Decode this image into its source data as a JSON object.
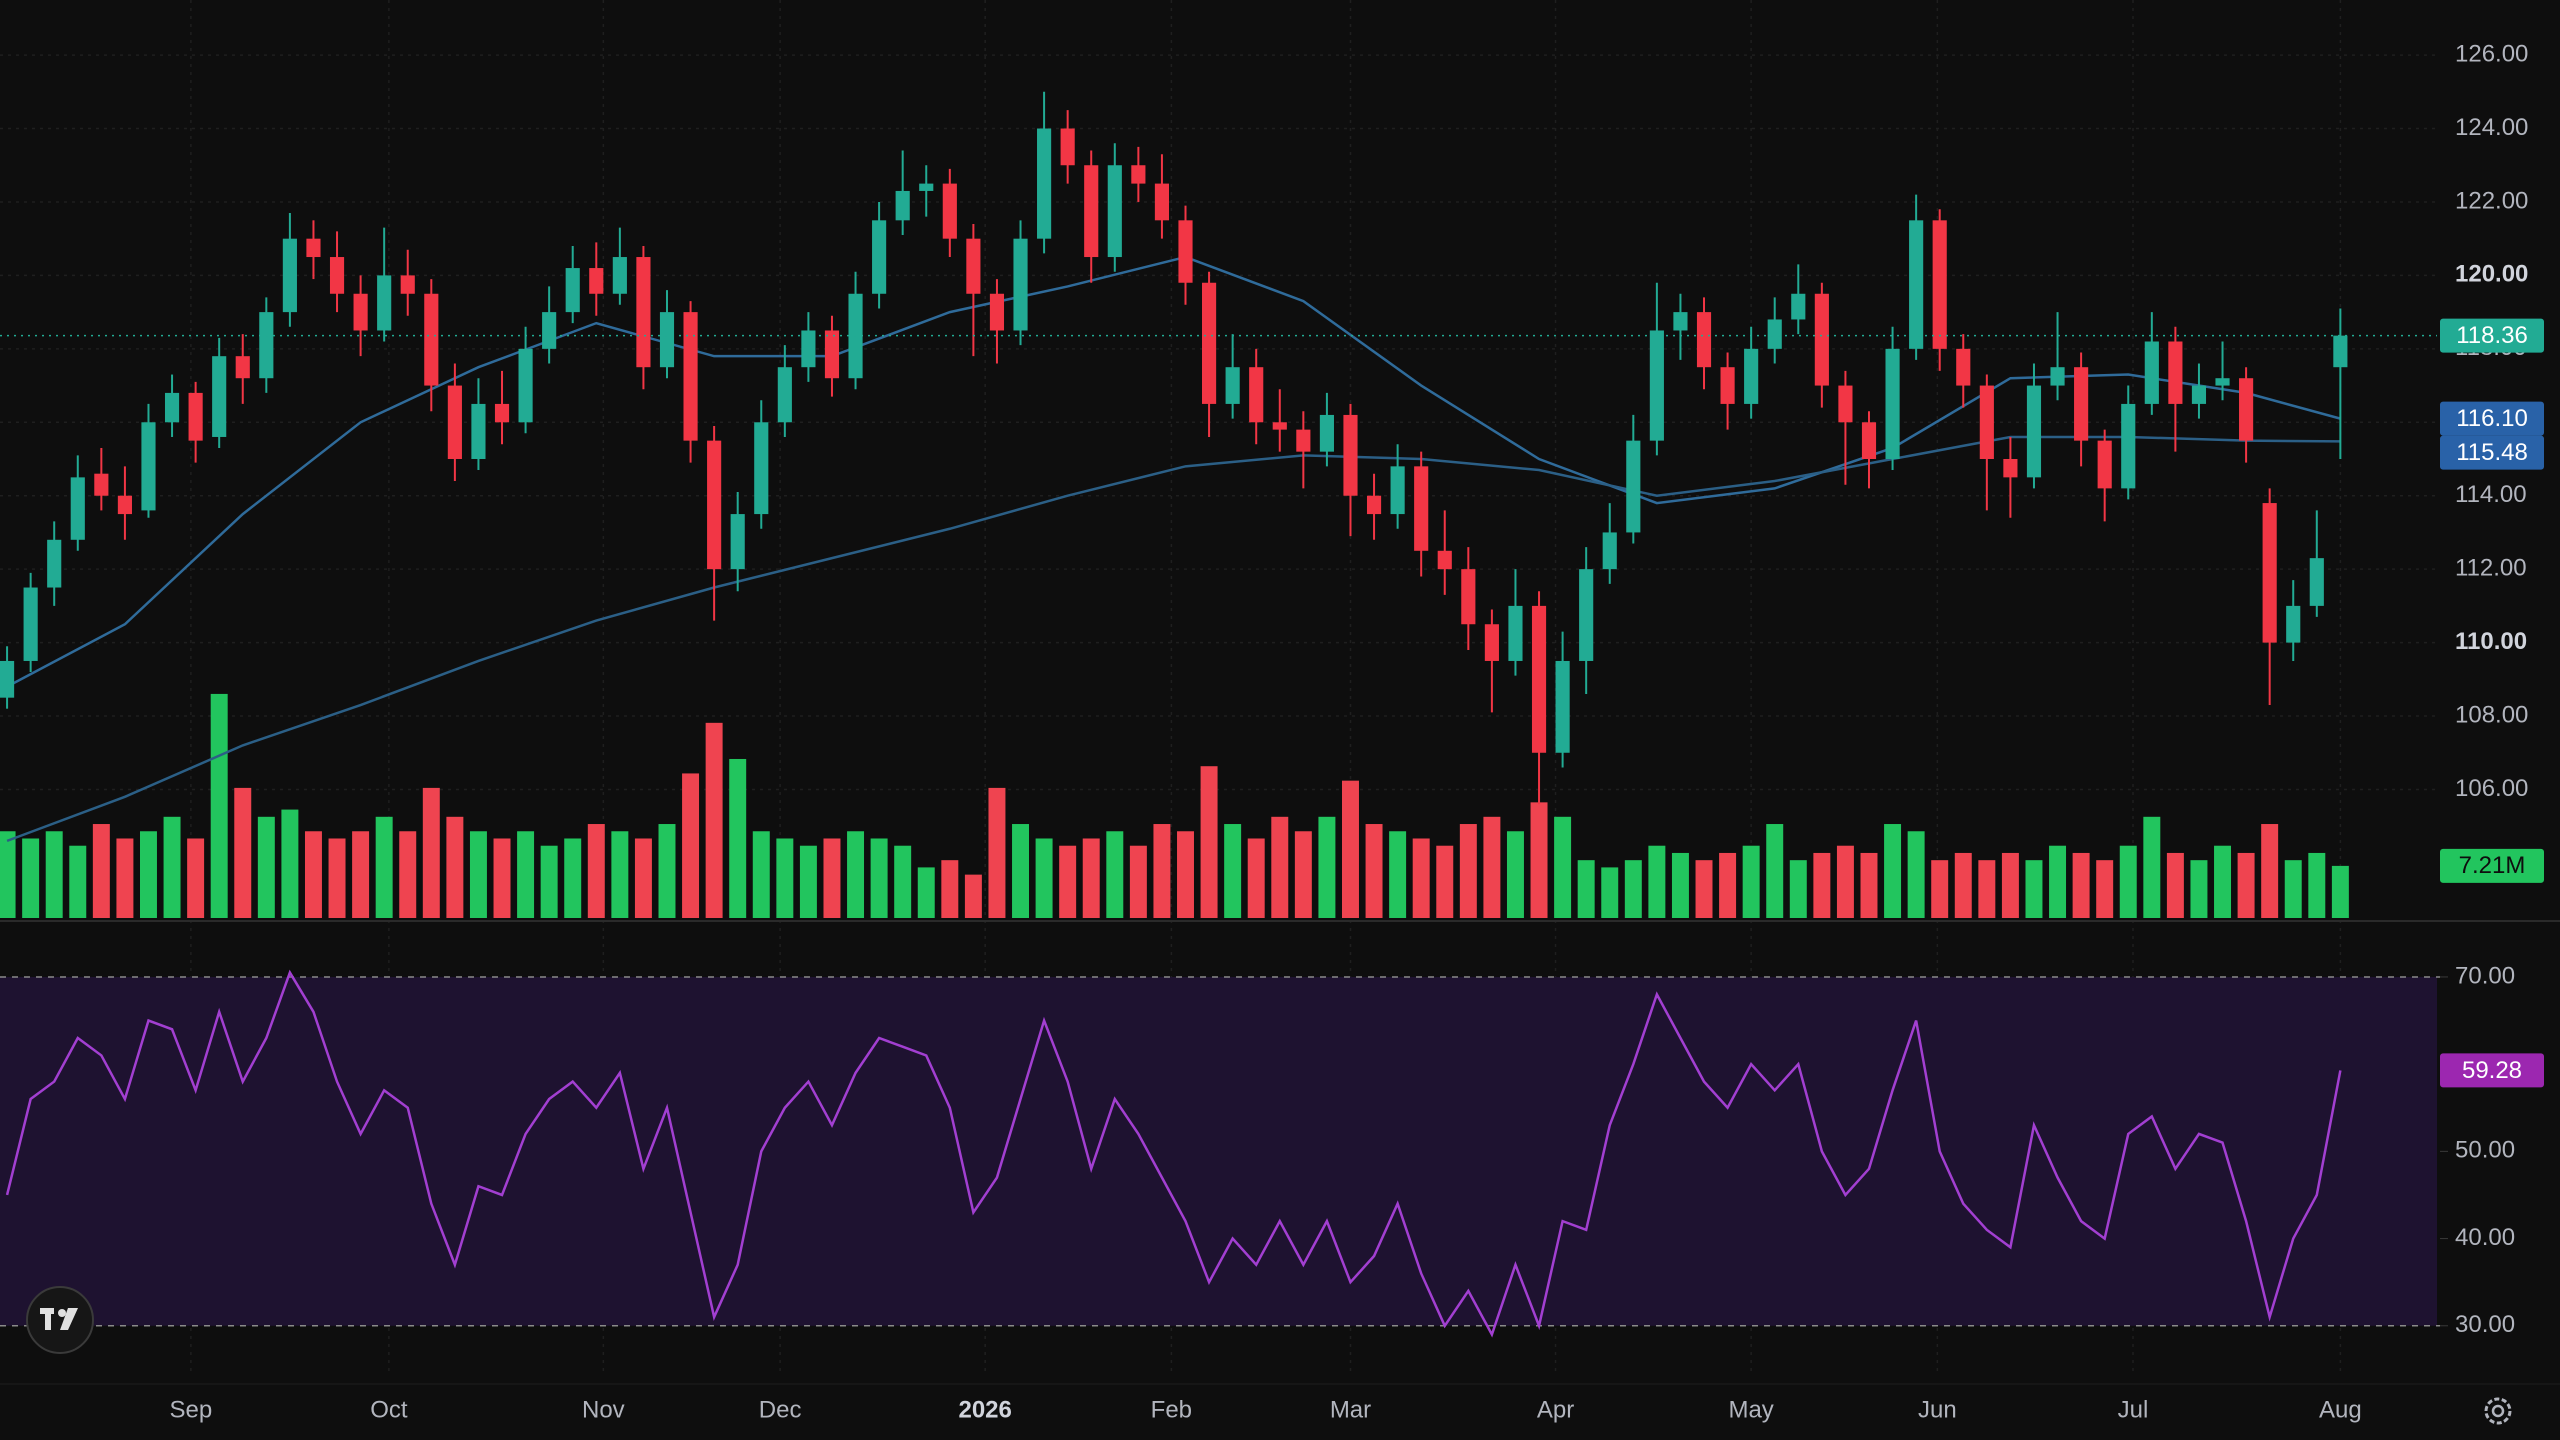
{
  "chart_data": {
    "type": "candlestick",
    "xlim": [
      -0.3,
      103.1
    ],
    "xticks": [
      {
        "value": 7.8,
        "label": "Sep"
      },
      {
        "value": 16.2,
        "label": "Oct"
      },
      {
        "value": 25.3,
        "label": "Nov"
      },
      {
        "value": 32.8,
        "label": "Dec"
      },
      {
        "value": 41.5,
        "label": "2026"
      },
      {
        "value": 49.4,
        "label": "Feb"
      },
      {
        "value": 57.0,
        "label": "Mar"
      },
      {
        "value": 65.7,
        "label": "Apr"
      },
      {
        "value": 74.0,
        "label": "May"
      },
      {
        "value": 81.9,
        "label": "Jun"
      },
      {
        "value": 90.2,
        "label": "Jul"
      },
      {
        "value": 99.0,
        "label": "Aug"
      }
    ],
    "ylim": [
      102.5,
      127.5
    ],
    "yticks": [
      {
        "value": 106,
        "label": "106.00"
      },
      {
        "value": 108,
        "label": "108.00"
      },
      {
        "value": 110,
        "label": "110.00"
      },
      {
        "value": 112,
        "label": "112.00"
      },
      {
        "value": 114,
        "label": "114.00"
      },
      {
        "value": 116,
        "label": "116.00"
      },
      {
        "value": 118,
        "label": "118.00"
      },
      {
        "value": 120,
        "label": "120.00"
      },
      {
        "value": 122,
        "label": "122.00"
      },
      {
        "value": 124,
        "label": "124.00"
      },
      {
        "value": 126,
        "label": "126.00"
      }
    ],
    "grid": true,
    "up_color": "#22ab94",
    "down_color": "#f23645",
    "open": [
      108.5,
      109.5,
      111.5,
      112.8,
      114.6,
      114.0,
      113.6,
      116.0,
      116.8,
      115.6,
      117.8,
      117.2,
      119.0,
      121.0,
      120.5,
      119.5,
      118.5,
      120.0,
      119.5,
      117.0,
      115.0,
      116.5,
      116.0,
      118.0,
      119.0,
      120.2,
      119.5,
      120.5,
      117.5,
      119.0,
      115.5,
      112.0,
      113.5,
      116.0,
      117.5,
      118.5,
      117.2,
      119.5,
      121.5,
      122.3,
      122.5,
      121.0,
      119.5,
      118.5,
      121.0,
      124.0,
      123.0,
      120.5,
      123.0,
      122.5,
      121.5,
      119.8,
      116.5,
      117.5,
      116.0,
      115.8,
      115.2,
      116.2,
      114.0,
      113.5,
      114.8,
      112.5,
      112.0,
      110.5,
      109.5,
      111.0,
      107.0,
      109.5,
      112.0,
      113.0,
      115.5,
      118.5,
      119.0,
      117.5,
      116.5,
      118.0,
      118.8,
      119.5,
      117.0,
      116.0,
      115.0,
      118.0,
      121.5,
      118.0,
      117.0,
      115.0,
      114.5,
      117.0,
      117.5,
      115.5,
      114.2,
      116.5,
      118.2,
      116.5,
      117.0,
      117.2,
      113.8,
      110.0,
      111.0,
      117.5
    ],
    "high": [
      109.9,
      111.9,
      113.3,
      115.1,
      115.3,
      114.8,
      116.5,
      117.3,
      117.1,
      118.3,
      118.4,
      119.4,
      121.7,
      121.5,
      121.2,
      120.0,
      121.3,
      120.7,
      119.9,
      117.6,
      117.2,
      117.4,
      118.6,
      119.7,
      120.8,
      120.9,
      121.3,
      120.8,
      119.6,
      119.3,
      115.9,
      114.1,
      116.6,
      118.1,
      119.0,
      118.9,
      120.1,
      122.0,
      123.4,
      123.0,
      122.9,
      121.4,
      119.9,
      121.5,
      125.0,
      124.5,
      123.4,
      123.6,
      123.5,
      123.3,
      121.9,
      120.1,
      118.4,
      118.0,
      116.9,
      116.3,
      116.8,
      116.5,
      114.6,
      115.4,
      115.2,
      113.6,
      112.6,
      110.9,
      112.0,
      111.4,
      110.3,
      112.6,
      113.8,
      116.2,
      119.8,
      119.5,
      119.4,
      117.9,
      118.6,
      119.4,
      120.3,
      119.8,
      117.4,
      116.3,
      118.6,
      122.2,
      121.8,
      118.4,
      117.3,
      115.6,
      117.6,
      119.0,
      117.9,
      115.8,
      117.0,
      119.0,
      118.6,
      117.6,
      118.2,
      117.5,
      114.2,
      111.7,
      113.6,
      119.1
    ],
    "low": [
      108.2,
      109.2,
      111.0,
      112.5,
      113.6,
      112.8,
      113.4,
      115.6,
      114.9,
      115.3,
      116.5,
      116.8,
      118.6,
      119.9,
      119.0,
      117.8,
      118.2,
      118.9,
      116.3,
      114.4,
      114.7,
      115.4,
      115.7,
      117.6,
      118.7,
      118.9,
      119.2,
      116.9,
      117.2,
      114.9,
      110.6,
      111.4,
      113.1,
      115.6,
      117.1,
      116.7,
      116.9,
      119.1,
      121.1,
      121.6,
      120.5,
      117.8,
      117.6,
      118.1,
      120.6,
      122.5,
      119.8,
      120.1,
      122.0,
      121.0,
      119.2,
      115.6,
      116.1,
      115.4,
      115.2,
      114.2,
      114.8,
      112.9,
      112.8,
      113.1,
      111.8,
      111.3,
      109.8,
      108.1,
      109.1,
      105.6,
      106.6,
      108.6,
      111.6,
      112.7,
      115.1,
      117.7,
      116.9,
      115.8,
      116.1,
      117.6,
      118.4,
      116.4,
      114.3,
      114.2,
      114.7,
      117.7,
      117.4,
      116.4,
      113.6,
      113.4,
      114.2,
      116.6,
      114.8,
      113.3,
      113.9,
      116.2,
      115.2,
      116.1,
      116.6,
      114.9,
      108.3,
      109.5,
      110.7,
      115.0
    ],
    "close": [
      109.5,
      111.5,
      112.8,
      114.5,
      114.0,
      113.5,
      116.0,
      116.8,
      115.5,
      117.8,
      117.2,
      119.0,
      121.0,
      120.5,
      119.5,
      118.5,
      120.0,
      119.5,
      117.0,
      115.0,
      116.5,
      116.0,
      118.0,
      119.0,
      120.2,
      119.5,
      120.5,
      117.5,
      119.0,
      115.5,
      112.0,
      113.5,
      116.0,
      117.5,
      118.5,
      117.2,
      119.5,
      121.5,
      122.3,
      122.5,
      121.0,
      119.5,
      118.5,
      121.0,
      124.0,
      123.0,
      120.5,
      123.0,
      122.5,
      121.5,
      119.8,
      116.5,
      117.5,
      116.0,
      115.8,
      115.2,
      116.2,
      114.0,
      113.5,
      114.8,
      112.5,
      112.0,
      110.5,
      109.5,
      111.0,
      107.0,
      109.5,
      112.0,
      113.0,
      115.5,
      118.5,
      119.0,
      117.5,
      116.5,
      118.0,
      118.8,
      119.5,
      117.0,
      116.0,
      115.0,
      118.0,
      121.5,
      118.0,
      117.0,
      115.0,
      114.5,
      117.0,
      117.5,
      115.5,
      114.2,
      116.5,
      118.2,
      116.5,
      117.0,
      117.2,
      115.5,
      110.0,
      111.0,
      112.3,
      118.36
    ],
    "volume": {
      "ylim": [
        0,
        127
      ],
      "up_color": "#22c55e",
      "down_color": "#ef4450",
      "values": [
        12,
        11,
        12,
        10,
        13,
        11,
        12,
        14,
        11,
        31,
        18,
        14,
        15,
        12,
        11,
        12,
        14,
        12,
        18,
        14,
        12,
        11,
        12,
        10,
        11,
        13,
        12,
        11,
        13,
        20,
        27,
        22,
        12,
        11,
        10,
        11,
        12,
        11,
        10,
        7,
        8,
        6,
        18,
        13,
        11,
        10,
        11,
        12,
        10,
        13,
        12,
        21,
        13,
        11,
        14,
        12,
        14,
        19,
        13,
        12,
        11,
        10,
        13,
        14,
        12,
        16,
        14,
        8,
        7,
        8,
        10,
        9,
        8,
        9,
        10,
        13,
        8,
        9,
        10,
        9,
        13,
        12,
        8,
        9,
        8,
        9,
        8,
        10,
        9,
        8,
        10,
        14,
        9,
        8,
        10,
        9,
        13,
        8,
        9,
        7.21
      ],
      "value_labels": [
        null,
        null,
        null,
        null,
        null,
        null,
        null,
        null,
        null,
        null,
        null,
        null,
        null,
        null,
        null,
        null,
        null,
        null,
        null,
        null,
        null,
        null,
        null,
        null,
        null,
        null,
        null,
        null,
        null,
        null,
        null,
        null,
        null,
        null,
        null,
        null,
        null,
        null,
        null,
        null,
        null,
        null,
        null,
        null,
        null,
        null,
        null,
        null,
        null,
        null,
        null,
        null,
        null,
        null,
        null,
        null,
        null,
        null,
        null,
        null,
        null,
        null,
        null,
        null,
        null,
        null,
        null,
        null,
        null,
        null,
        null,
        null,
        null,
        null,
        null,
        null,
        null,
        null,
        null,
        null,
        null,
        null,
        null,
        null,
        null,
        null,
        null,
        null,
        null,
        null,
        null,
        null,
        null,
        null,
        null,
        null,
        null,
        null,
        null,
        "7.21M"
      ]
    },
    "overlay_x": [
      0,
      5,
      10,
      15,
      20,
      25,
      30,
      35,
      40,
      45,
      50,
      55,
      60,
      65,
      70,
      75,
      80,
      85,
      90,
      95,
      99
    ],
    "overlays": [
      {
        "color": "#2f6b9a",
        "label_color": "#2962a8",
        "values": [
          108.8,
          110.5,
          113.5,
          116.0,
          117.5,
          118.7,
          117.8,
          117.8,
          119.0,
          119.7,
          120.5,
          119.3,
          117.0,
          115.0,
          113.8,
          114.2,
          115.3,
          117.2,
          117.3,
          116.8,
          116.1
        ],
        "value_labels": [
          null,
          null,
          null,
          null,
          null,
          null,
          null,
          null,
          null,
          null,
          null,
          null,
          null,
          null,
          null,
          null,
          null,
          null,
          null,
          null,
          "116.10"
        ]
      },
      {
        "color": "#2b5f86",
        "label_color": "#2962a8",
        "values": [
          104.6,
          105.8,
          107.2,
          108.3,
          109.5,
          110.6,
          111.5,
          112.3,
          113.1,
          114.0,
          114.8,
          115.1,
          115.0,
          114.7,
          114.0,
          114.4,
          115.0,
          115.6,
          115.6,
          115.5,
          115.48
        ],
        "value_labels": [
          null,
          null,
          null,
          null,
          null,
          null,
          null,
          null,
          null,
          null,
          null,
          null,
          null,
          null,
          null,
          null,
          null,
          null,
          null,
          null,
          "115.48"
        ]
      }
    ],
    "rsi": {
      "color": "#a23fd1",
      "label_color": "#9c27b0",
      "band": [
        30,
        70
      ],
      "band_color": "#1e1230",
      "ylim": [
        24.7,
        76.3
      ],
      "yticks": [
        {
          "value": 30,
          "label": "30.00"
        },
        {
          "value": 40,
          "label": "40.00"
        },
        {
          "value": 50,
          "label": "50.00"
        },
        {
          "value": 70,
          "label": "70.00"
        }
      ],
      "values": [
        45,
        56,
        58,
        63,
        61,
        56,
        65,
        64,
        57,
        66,
        58,
        63,
        70.5,
        66,
        58,
        52,
        57,
        55,
        44,
        37,
        46,
        45,
        52,
        56,
        58,
        55,
        59,
        48,
        55,
        43,
        31,
        37,
        50,
        55,
        58,
        53,
        59,
        63,
        62,
        61,
        55,
        43,
        47,
        56,
        65,
        58,
        48,
        56,
        52,
        47,
        42,
        35,
        40,
        37,
        42,
        37,
        42,
        35,
        38,
        44,
        36,
        30,
        34,
        29,
        37,
        30,
        42,
        41,
        53,
        60,
        68,
        63,
        58,
        55,
        60,
        57,
        60,
        50,
        45,
        48,
        57,
        65,
        50,
        44,
        41,
        39,
        53,
        47,
        42,
        40,
        52,
        54,
        48,
        52,
        51,
        42,
        31,
        40,
        45,
        59.28
      ]
    }
  }
}
